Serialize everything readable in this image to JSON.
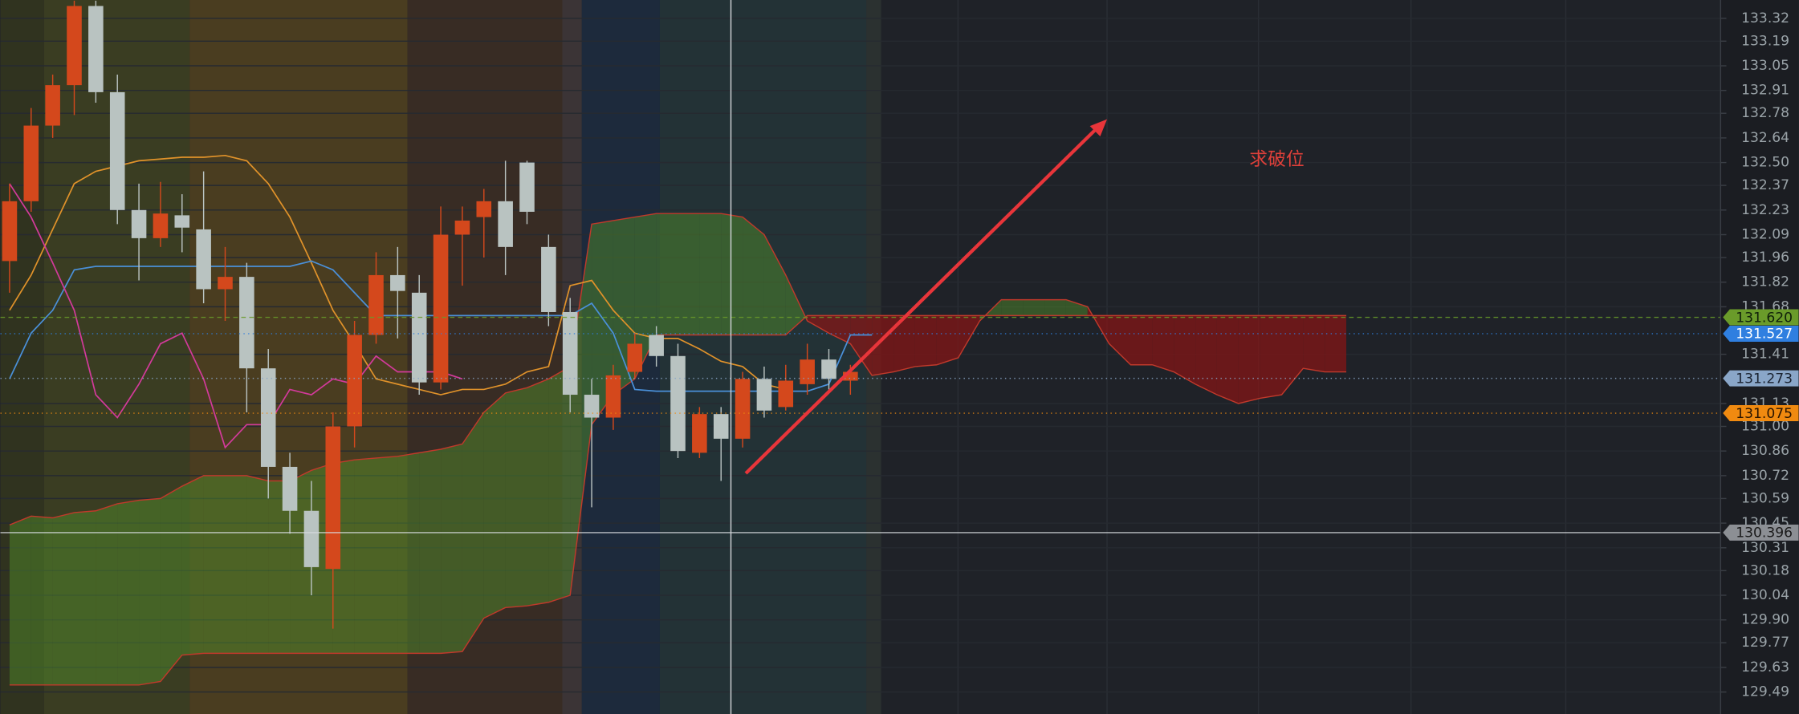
{
  "chart_data": {
    "type": "candlestick",
    "annotation": "求破位",
    "ylim": [
      129.365,
      133.424
    ],
    "yticks": [
      133.32,
      133.19,
      133.05,
      132.91,
      132.78,
      132.64,
      {
        "value": 132.5,
        "label": "132.50"
      },
      132.37,
      132.23,
      132.09,
      131.96,
      131.82,
      131.68,
      131.41,
      131.13,
      {
        "value": 131,
        "label": "131.00"
      },
      130.86,
      130.72,
      130.59,
      130.45,
      130.31,
      130.18,
      130.04,
      {
        "value": 129.9,
        "label": "129.90"
      },
      129.77,
      129.63,
      129.49
    ],
    "grid": true,
    "up_color": "#d4481c",
    "down_color": "#b9c3c1",
    "open": [
      131.94,
      132.28,
      132.71,
      132.94,
      133.39,
      132.9,
      132.23,
      132.07,
      132.2,
      132.12,
      131.78,
      131.85,
      131.33,
      130.77,
      130.52,
      130.19,
      131.0,
      131.52,
      131.86,
      131.76,
      131.25,
      132.09,
      132.19,
      132.28,
      132.5,
      132.02,
      131.65,
      131.18,
      131.05,
      131.31,
      131.52,
      131.4,
      130.85,
      131.07,
      130.93,
      131.27,
      131.11,
      131.24,
      131.38,
      131.26
    ],
    "high": [
      132.38,
      132.81,
      133.0,
      133.42,
      133.42,
      133.0,
      132.38,
      132.39,
      132.32,
      132.45,
      132.02,
      131.93,
      131.44,
      130.85,
      130.69,
      131.08,
      131.6,
      131.99,
      132.02,
      131.86,
      132.25,
      132.25,
      132.35,
      132.51,
      132.51,
      132.09,
      131.73,
      131.27,
      131.35,
      131.53,
      131.57,
      131.47,
      131.11,
      131.11,
      131.31,
      131.34,
      131.35,
      131.47,
      131.44,
      131.35
    ],
    "low": [
      131.76,
      132.22,
      132.64,
      132.77,
      132.84,
      132.15,
      131.83,
      132.02,
      131.99,
      131.7,
      131.6,
      131.08,
      130.59,
      130.39,
      130.04,
      129.85,
      130.88,
      131.47,
      131.5,
      131.18,
      131.21,
      131.8,
      131.96,
      131.86,
      132.15,
      131.57,
      131.08,
      130.54,
      130.98,
      131.27,
      131.34,
      130.82,
      130.82,
      130.69,
      130.88,
      131.05,
      131.09,
      131.18,
      131.21,
      131.18
    ],
    "close": [
      132.28,
      132.71,
      132.94,
      133.39,
      132.9,
      132.23,
      132.07,
      132.21,
      132.13,
      131.78,
      131.85,
      131.33,
      130.77,
      130.52,
      130.2,
      131.0,
      131.52,
      131.86,
      131.77,
      131.25,
      132.09,
      132.17,
      132.28,
      132.02,
      132.22,
      131.65,
      131.18,
      131.05,
      131.29,
      131.47,
      131.4,
      130.86,
      131.07,
      130.93,
      131.27,
      131.09,
      131.26,
      131.38,
      131.27,
      131.31
    ],
    "cloud": {
      "up_color": "#4f8a2a",
      "down_color": "#8a1414",
      "line_color": "#c0392b",
      "span_a": [
        130.44,
        130.49,
        130.48,
        130.51,
        130.52,
        130.56,
        130.58,
        130.59,
        130.66,
        130.72,
        130.72,
        130.72,
        130.69,
        130.69,
        130.75,
        130.79,
        130.81,
        130.82,
        130.83,
        130.85,
        130.87,
        130.9,
        131.08,
        131.19,
        131.22,
        131.27,
        131.34,
        132.15,
        132.17,
        132.19,
        132.21,
        132.21,
        132.21,
        132.21,
        132.19,
        132.09,
        131.86,
        131.6,
        131.53,
        131.47,
        131.29,
        131.31,
        131.34,
        131.35,
        131.39,
        131.6,
        131.72,
        131.72,
        131.72,
        131.72,
        131.68,
        131.47,
        131.35,
        131.35,
        131.31,
        131.24,
        131.18,
        131.13,
        131.16,
        131.18,
        131.33,
        131.31,
        131.31
      ],
      "span_b": [
        129.53,
        129.53,
        129.53,
        129.53,
        129.53,
        129.53,
        129.53,
        129.55,
        129.7,
        129.71,
        129.71,
        129.71,
        129.71,
        129.71,
        129.71,
        129.71,
        129.71,
        129.71,
        129.71,
        129.71,
        129.71,
        129.72,
        129.91,
        129.97,
        129.98,
        130.0,
        130.04,
        131.01,
        131.18,
        131.27,
        131.52,
        131.52,
        131.52,
        131.52,
        131.52,
        131.52,
        131.52,
        131.63,
        131.63,
        131.63,
        131.63,
        131.63,
        131.63,
        131.63,
        131.63,
        131.63,
        131.63,
        131.63,
        131.63,
        131.63,
        131.63,
        131.63,
        131.63,
        131.63,
        131.63,
        131.63,
        131.63,
        131.63,
        131.63,
        131.63,
        131.63,
        131.63,
        131.63
      ]
    },
    "lines": [
      {
        "color": "#e0922a",
        "values": [
          131.66,
          131.86,
          132.12,
          132.38,
          132.45,
          132.48,
          132.51,
          132.52,
          132.53,
          132.53,
          132.54,
          132.51,
          132.38,
          132.19,
          131.93,
          131.66,
          131.47,
          131.27,
          131.24,
          131.21,
          131.18,
          131.21,
          131.21,
          131.24,
          131.31,
          131.34,
          131.8,
          131.83,
          131.66,
          131.53,
          131.5,
          131.5,
          131.44,
          131.37,
          131.34,
          131.24,
          131.21
        ]
      },
      {
        "color": "#4a90d9",
        "values": [
          131.27,
          131.53,
          131.66,
          131.89,
          131.91,
          131.91,
          131.91,
          131.91,
          131.91,
          131.91,
          131.91,
          131.91,
          131.91,
          131.91,
          131.94,
          131.89,
          131.76,
          131.63,
          131.63,
          131.63,
          131.63,
          131.63,
          131.63,
          131.63,
          131.63,
          131.63,
          131.63,
          131.7,
          131.53,
          131.21,
          131.2,
          131.2,
          131.2,
          131.2,
          131.2,
          131.2,
          131.2,
          131.2,
          131.24,
          131.52,
          131.52
        ]
      },
      {
        "color": "#d23a9a",
        "values": [
          132.38,
          132.19,
          131.93,
          131.66,
          131.18,
          131.05,
          131.24,
          131.47,
          131.53,
          131.27,
          130.88,
          131.01,
          131.01,
          131.21,
          131.18,
          131.27,
          131.24,
          131.4,
          131.31,
          131.31,
          131.31,
          131.27
        ]
      }
    ],
    "price_tags": [
      {
        "value": 131.62,
        "label": "131.620",
        "color": "#6a9b2a",
        "text_color": "#10200a",
        "style": "dashed"
      },
      {
        "value": 131.527,
        "label": "131.527",
        "color": "#2f7fe0",
        "text_color": "#ffffff",
        "style": "dotted"
      },
      {
        "value": 131.273,
        "label": "131.273",
        "color": "#8aa6c8",
        "text_color": "#1a2230",
        "style": "dotted"
      },
      {
        "value": 131.075,
        "label": "131.075",
        "color": "#f08a10",
        "text_color": "#2a1500",
        "style": "dotted"
      },
      {
        "value": 130.396,
        "label": "130.396",
        "color": "#8c8f94",
        "text_color": "#1a1a1a",
        "style": "solid"
      }
    ]
  }
}
